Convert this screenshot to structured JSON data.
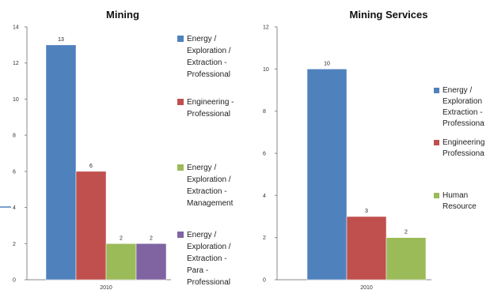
{
  "chart_data": [
    {
      "type": "bar",
      "title": "Mining",
      "categories": [
        "2010"
      ],
      "ylim": [
        0,
        14
      ],
      "ytick_labels": [
        "0",
        "2",
        "4",
        "6",
        "8",
        "10",
        "12",
        "14"
      ],
      "grid": false,
      "legend_position": "right",
      "series": [
        {
          "name": "Energy / Exploration / Extraction - Professional",
          "legend_lines": [
            "Energy /",
            "Exploration /",
            "Extraction -",
            "Professional"
          ],
          "values": [
            13
          ],
          "color": "#4F81BD"
        },
        {
          "name": "Engineering - Professional",
          "legend_lines": [
            "Engineering -",
            "Professional"
          ],
          "values": [
            6
          ],
          "color": "#C0504D"
        },
        {
          "name": "Energy / Exploration / Extraction - Management",
          "legend_lines": [
            "Energy /",
            "Exploration /",
            "Extraction -",
            "Management"
          ],
          "values": [
            2
          ],
          "color": "#9BBB59"
        },
        {
          "name": "Energy / Exploration / Extraction - Para - Professional",
          "legend_lines": [
            "Energy /",
            "Exploration /",
            "Extraction -",
            "Para -",
            "Professional"
          ],
          "values": [
            2
          ],
          "color": "#8064A2"
        }
      ]
    },
    {
      "type": "bar",
      "title": "Mining Services",
      "categories": [
        "2010"
      ],
      "ylim": [
        0,
        12
      ],
      "ytick_labels": [
        "0",
        "2",
        "4",
        "6",
        "8",
        "10",
        "12"
      ],
      "grid": false,
      "legend_position": "right",
      "series": [
        {
          "name": "Energy / Exploration / Extraction - Professional",
          "legend_lines": [
            "Energy /",
            "Exploration",
            "Extraction -",
            "Professiona"
          ],
          "values": [
            10
          ],
          "color": "#4F81BD"
        },
        {
          "name": "Engineering - Professional",
          "legend_lines": [
            "Engineering",
            "Professiona"
          ],
          "values": [
            3
          ],
          "color": "#C0504D"
        },
        {
          "name": "Human Resource",
          "legend_lines": [
            "Human",
            "Resource"
          ],
          "values": [
            2
          ],
          "color": "#9BBB59"
        }
      ]
    }
  ]
}
